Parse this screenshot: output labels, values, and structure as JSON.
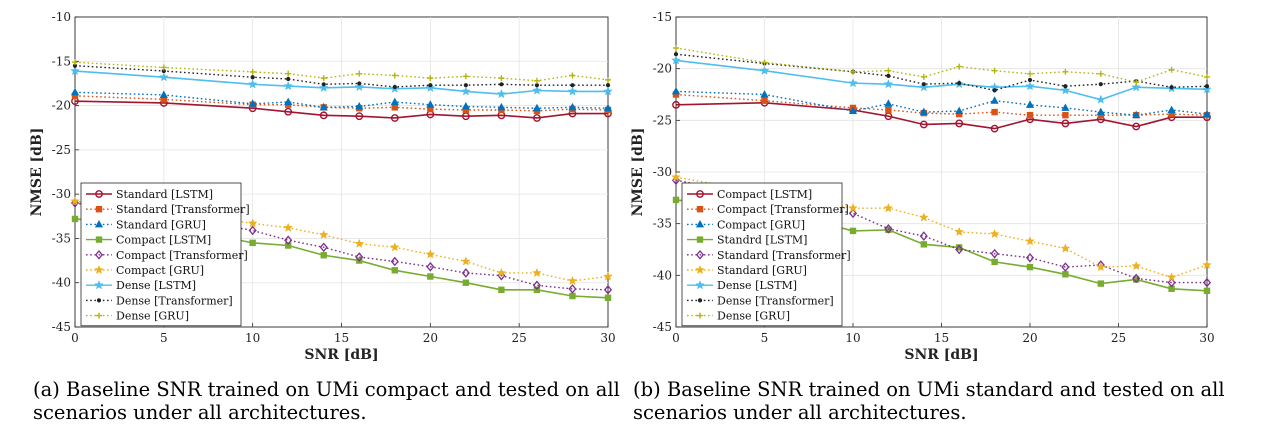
{
  "colors": {
    "lstm_standard": "#a2142f",
    "transformer_standard": "#d95319",
    "gru_standard": "#0072bd",
    "lstm_compact": "#77ac30",
    "transformer_compact": "#7e2f8e",
    "gru_compact": "#edb120",
    "lstm_dense": "#4dbeee",
    "transformer_dense": "#222222",
    "gru_dense": "#b5b512"
  },
  "chart_data": [
    {
      "type": "line",
      "caption": "(a) Baseline SNR trained on UMi compact and tested on all scenarios under all architectures.",
      "xlabel": "SNR [dB]",
      "ylabel": "NMSE [dB]",
      "xlim": [
        0,
        30
      ],
      "ylim": [
        -45,
        -10
      ],
      "xticks": [
        0,
        5,
        10,
        15,
        20,
        25,
        30
      ],
      "yticks": [
        -10,
        -15,
        -20,
        -25,
        -30,
        -35,
        -40,
        -45
      ],
      "grid": true,
      "legend_position": "bottom-left",
      "x": [
        0,
        5,
        10,
        12,
        14,
        16,
        18,
        20,
        22,
        24,
        26,
        28,
        30
      ],
      "series": [
        {
          "name": "Standard [LSTM]",
          "color_key": "lstm_standard",
          "dash": "solid",
          "marker": "circle",
          "values": [
            -19.5,
            -19.7,
            -20.3,
            -20.7,
            -21.1,
            -21.2,
            -21.4,
            -21.0,
            -21.2,
            -21.1,
            -21.4,
            -20.9,
            -20.9
          ]
        },
        {
          "name": "Standard [Transformer]",
          "color_key": "transformer_standard",
          "dash": "dotted",
          "marker": "square",
          "values": [
            -18.9,
            -19.3,
            -19.9,
            -19.9,
            -20.2,
            -20.3,
            -20.2,
            -20.4,
            -20.5,
            -20.5,
            -20.6,
            -20.4,
            -20.5
          ]
        },
        {
          "name": "Standard [GRU]",
          "color_key": "gru_standard",
          "dash": "dotted",
          "marker": "triangle",
          "values": [
            -18.5,
            -18.8,
            -19.8,
            -19.6,
            -20.2,
            -20.1,
            -19.6,
            -19.9,
            -20.1,
            -20.2,
            -20.3,
            -20.2,
            -20.3
          ]
        },
        {
          "name": "Compact [LSTM]",
          "color_key": "lstm_compact",
          "dash": "solid",
          "marker": "square",
          "values": [
            -32.8,
            -33.5,
            -35.5,
            -35.8,
            -36.9,
            -37.5,
            -38.6,
            -39.3,
            -40.0,
            -40.8,
            -40.8,
            -41.5,
            -41.7
          ]
        },
        {
          "name": "Compact [Transformer]",
          "color_key": "transformer_compact",
          "dash": "dotted",
          "marker": "diamond",
          "values": [
            -31.0,
            -32.3,
            -34.1,
            -35.2,
            -36.0,
            -37.1,
            -37.6,
            -38.2,
            -38.9,
            -39.2,
            -40.3,
            -40.7,
            -40.8
          ]
        },
        {
          "name": "Compact [GRU]",
          "color_key": "gru_compact",
          "dash": "dotted",
          "marker": "star",
          "values": [
            -30.8,
            -31.9,
            -33.3,
            -33.8,
            -34.6,
            -35.6,
            -36.0,
            -36.8,
            -37.6,
            -38.9,
            -38.9,
            -39.8,
            -39.3
          ]
        },
        {
          "name": "Dense [LSTM]",
          "color_key": "lstm_dense",
          "dash": "solid",
          "marker": "star",
          "values": [
            -16.1,
            -16.8,
            -17.6,
            -17.8,
            -18.0,
            -17.9,
            -18.1,
            -18.0,
            -18.4,
            -18.7,
            -18.3,
            -18.4,
            -18.4
          ]
        },
        {
          "name": "Dense [Transformer]",
          "color_key": "transformer_dense",
          "dash": "dotted",
          "marker": "dot",
          "values": [
            -15.5,
            -16.1,
            -16.8,
            -17.0,
            -17.6,
            -17.5,
            -17.9,
            -17.7,
            -17.7,
            -17.6,
            -17.7,
            -17.7,
            -17.7
          ]
        },
        {
          "name": "Dense [GRU]",
          "color_key": "gru_dense",
          "dash": "dotted",
          "marker": "plus",
          "values": [
            -15.1,
            -15.7,
            -16.2,
            -16.4,
            -16.9,
            -16.4,
            -16.6,
            -16.9,
            -16.7,
            -16.9,
            -17.2,
            -16.6,
            -17.1
          ]
        }
      ]
    },
    {
      "type": "line",
      "caption": "(b) Baseline SNR trained on UMi standard and tested on all scenarios under all architectures.",
      "xlabel": "SNR [dB]",
      "ylabel": "NMSE [dB]",
      "xlim": [
        0,
        30
      ],
      "ylim": [
        -45,
        -15
      ],
      "xticks": [
        0,
        5,
        10,
        15,
        20,
        25,
        30
      ],
      "yticks": [
        -15,
        -20,
        -25,
        -30,
        -35,
        -40,
        -45
      ],
      "grid": true,
      "legend_position": "bottom-left",
      "x": [
        0,
        5,
        10,
        12,
        14,
        16,
        18,
        20,
        22,
        24,
        26,
        28,
        30
      ],
      "series": [
        {
          "name": "Compact [LSTM]",
          "color_key": "lstm_standard",
          "dash": "solid",
          "marker": "circle",
          "values": [
            -23.5,
            -23.3,
            -24.0,
            -24.6,
            -25.4,
            -25.3,
            -25.8,
            -24.9,
            -25.3,
            -24.9,
            -25.6,
            -24.7,
            -24.7
          ]
        },
        {
          "name": "Compact [Transformer]",
          "color_key": "transformer_standard",
          "dash": "dotted",
          "marker": "square",
          "values": [
            -22.5,
            -23.1,
            -23.8,
            -24.0,
            -24.3,
            -24.4,
            -24.2,
            -24.5,
            -24.5,
            -24.5,
            -24.5,
            -24.4,
            -24.5
          ]
        },
        {
          "name": "Compact [GRU]",
          "color_key": "gru_standard",
          "dash": "dotted",
          "marker": "triangle",
          "values": [
            -22.2,
            -22.5,
            -24.1,
            -23.4,
            -24.2,
            -24.1,
            -23.1,
            -23.5,
            -23.8,
            -24.2,
            -24.5,
            -24.0,
            -24.4
          ]
        },
        {
          "name": "Standrd [LSTM]",
          "color_key": "lstm_compact",
          "dash": "solid",
          "marker": "square",
          "values": [
            -32.7,
            -33.5,
            -35.7,
            -35.6,
            -37.0,
            -37.3,
            -38.7,
            -39.2,
            -39.9,
            -40.8,
            -40.4,
            -41.3,
            -41.5
          ]
        },
        {
          "name": "Standard [Transformer]",
          "color_key": "transformer_compact",
          "dash": "dotted",
          "marker": "diamond",
          "values": [
            -30.8,
            -32.4,
            -34.0,
            -35.5,
            -36.2,
            -37.5,
            -37.9,
            -38.3,
            -39.2,
            -39.0,
            -40.3,
            -40.7,
            -40.7
          ]
        },
        {
          "name": "Standard [GRU]",
          "color_key": "gru_compact",
          "dash": "dotted",
          "marker": "star",
          "values": [
            -30.5,
            -32.0,
            -33.5,
            -33.5,
            -34.4,
            -35.8,
            -36.0,
            -36.7,
            -37.4,
            -39.2,
            -39.1,
            -40.2,
            -39.0
          ]
        },
        {
          "name": "Dense [LSTM]",
          "color_key": "lstm_dense",
          "dash": "solid",
          "marker": "star",
          "values": [
            -19.2,
            -20.2,
            -21.4,
            -21.5,
            -21.8,
            -21.5,
            -21.8,
            -21.7,
            -22.1,
            -23.0,
            -21.8,
            -21.9,
            -22.0
          ]
        },
        {
          "name": "Dense [Transformer]",
          "color_key": "transformer_dense",
          "dash": "dotted",
          "marker": "dot",
          "values": [
            -18.6,
            -19.5,
            -20.3,
            -20.7,
            -21.5,
            -21.4,
            -22.1,
            -21.1,
            -21.7,
            -21.5,
            -21.2,
            -21.8,
            -21.7
          ]
        },
        {
          "name": "Dense [GRU]",
          "color_key": "gru_dense",
          "dash": "dotted",
          "marker": "plus",
          "values": [
            -18.0,
            -19.4,
            -20.3,
            -20.2,
            -20.8,
            -19.8,
            -20.2,
            -20.5,
            -20.3,
            -20.5,
            -21.3,
            -20.1,
            -20.8
          ]
        }
      ]
    }
  ]
}
